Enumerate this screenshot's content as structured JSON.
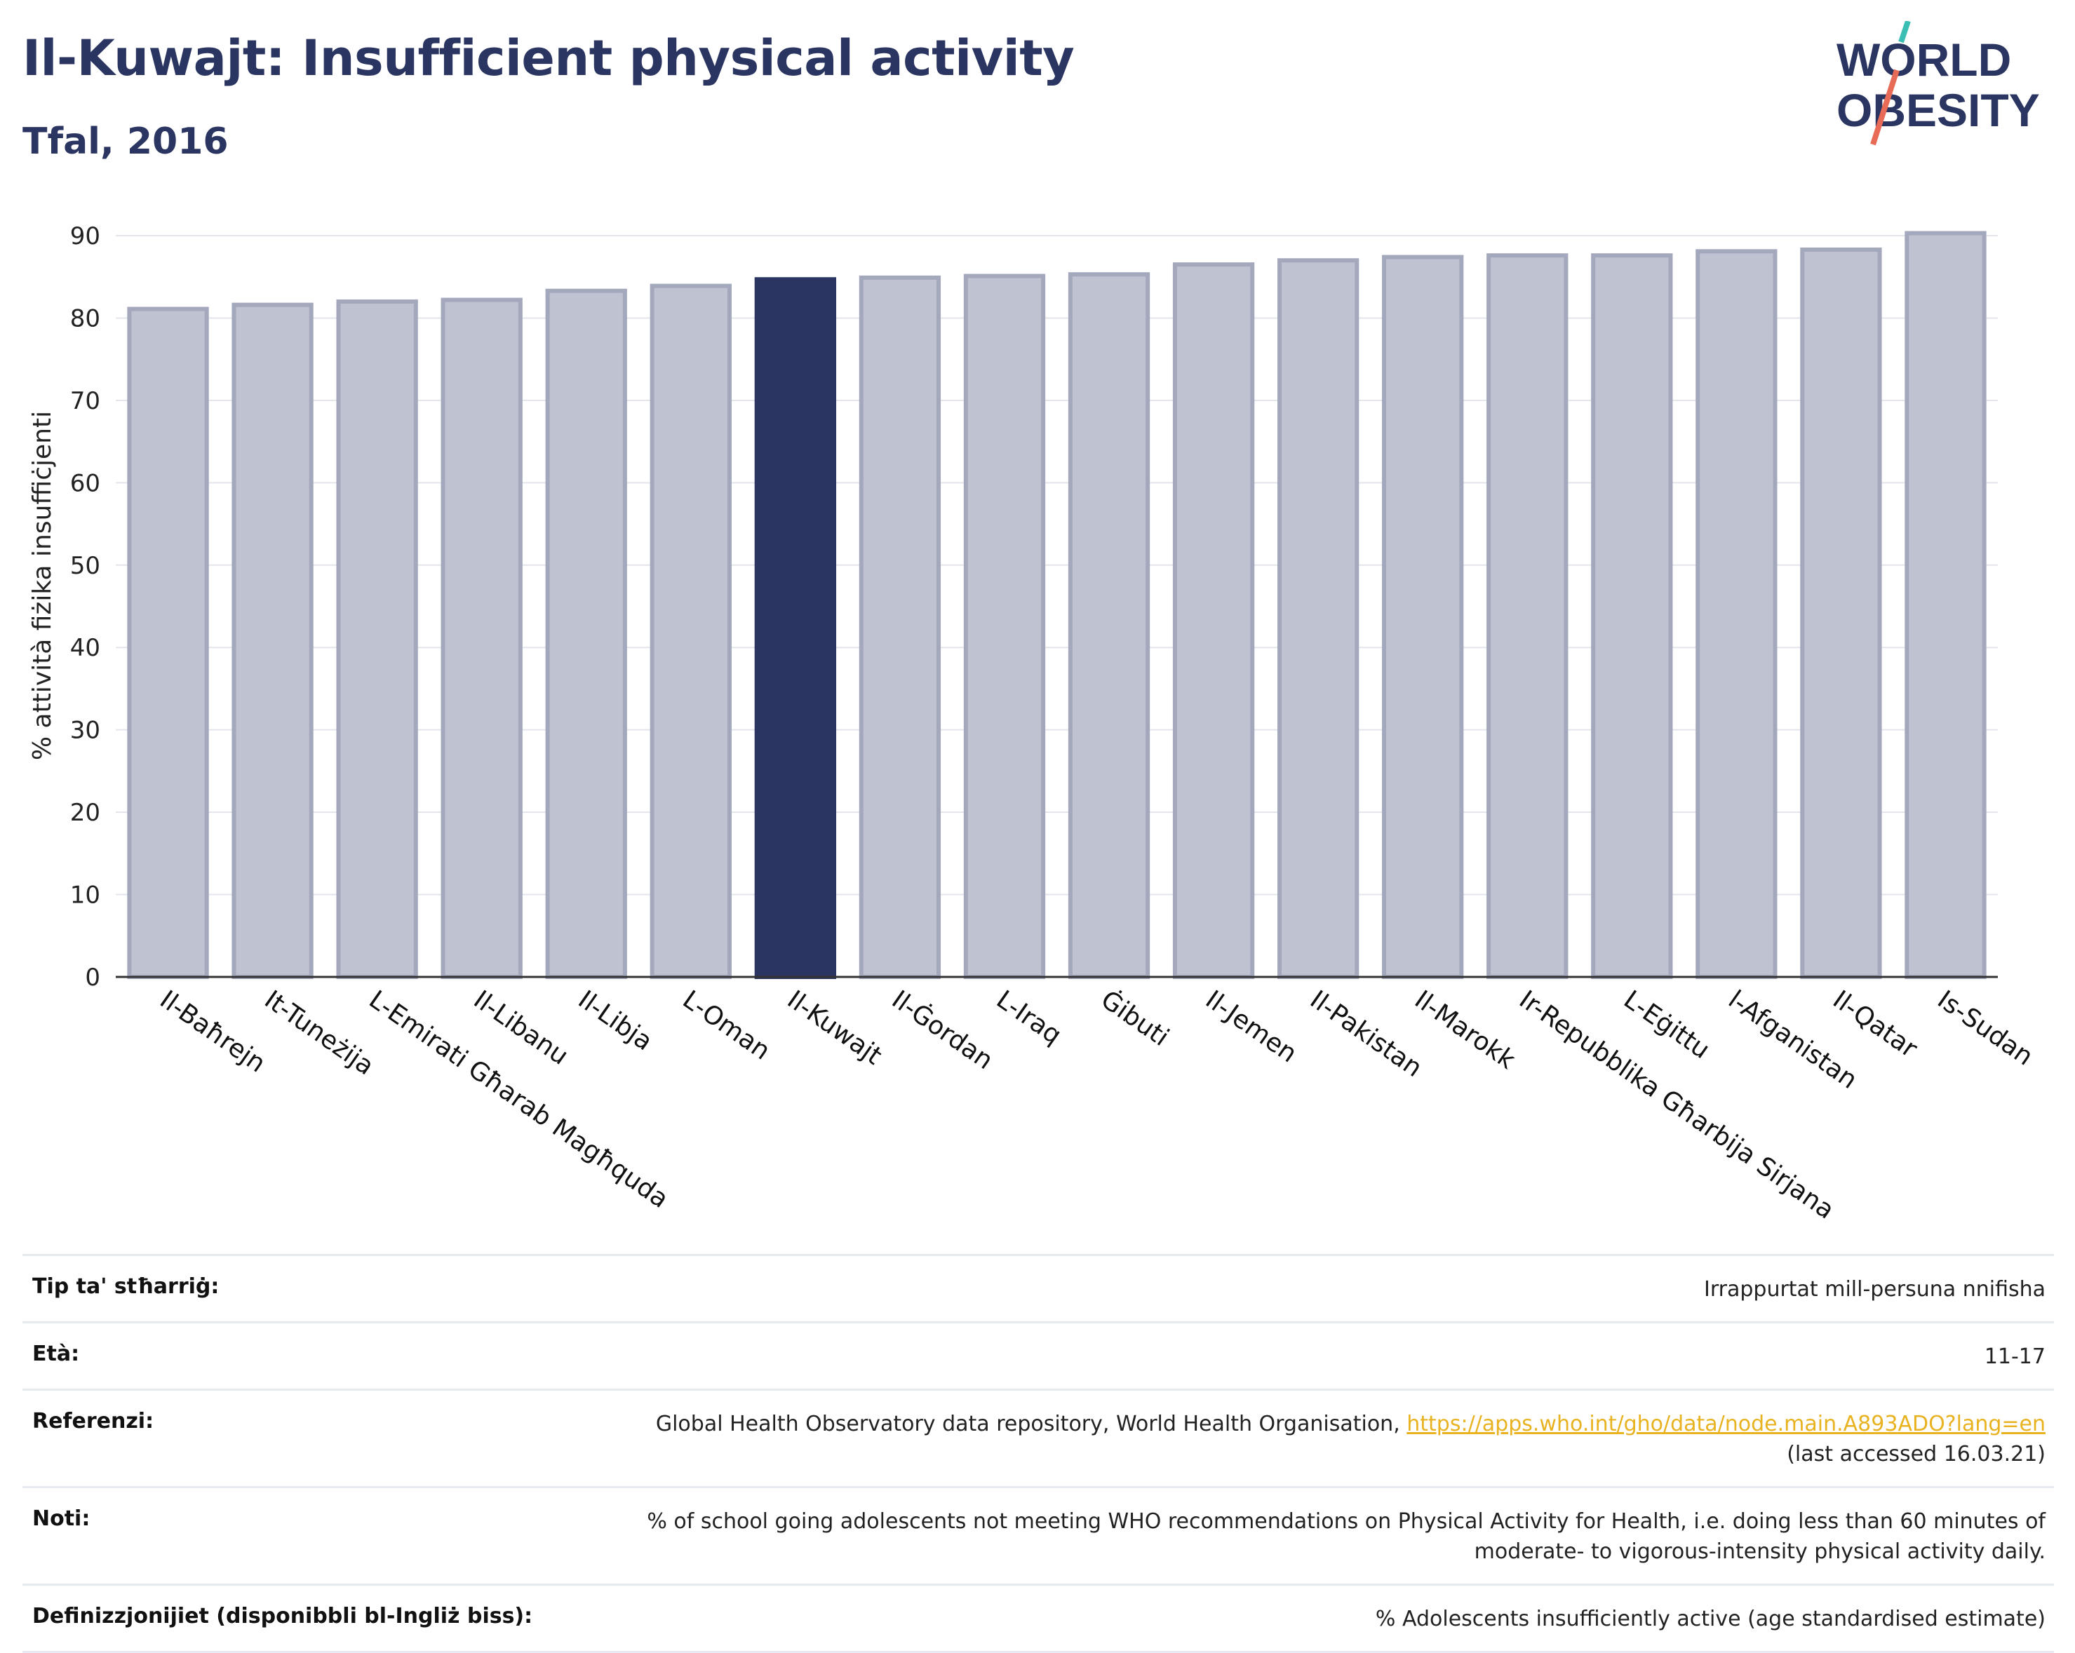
{
  "header": {
    "title": "Il-Kuwajt: Insufficient physical activity",
    "subtitle": "Tfal, 2016"
  },
  "logo": {
    "line1": "WORLD",
    "line2": "OBESITY"
  },
  "colors": {
    "highlight": "#2b3561",
    "bar_fill": "#bfc2d0",
    "bar_stroke": "#a3a8bd",
    "text_dark": "#2b3561",
    "link": "#e8b220"
  },
  "chart_data": {
    "type": "bar",
    "ylabel": "% attività fiżika insuffiċjenti",
    "ylim": [
      0,
      90
    ],
    "yticks": [
      0,
      10,
      20,
      30,
      40,
      50,
      60,
      70,
      80,
      90
    ],
    "grid": true,
    "highlight": "Il-Kuwajt",
    "categories": [
      "Il-Baħrejn",
      "It-Tuneżija",
      "L-Emirati Għarab Magħquda",
      "Il-Libanu",
      "Il-Libja",
      "L-Oman",
      "Il-Kuwajt",
      "Il-Ġordan",
      "L-Iraq",
      "Ġibuti",
      "Il-Jemen",
      "Il-Pakistan",
      "Il-Marokk",
      "Ir-Repubblika Għarbija Sirjana",
      "L-Eġittu",
      "l-Afganistan",
      "Il-Qatar",
      "Is-Sudan"
    ],
    "values": [
      81.1,
      81.6,
      82.0,
      82.2,
      83.3,
      83.9,
      84.7,
      84.9,
      85.1,
      85.3,
      86.5,
      87.0,
      87.4,
      87.6,
      87.6,
      88.1,
      88.3,
      90.3
    ]
  },
  "info_table": [
    {
      "label": "Tip ta' stħarriġ:",
      "value": "Irrappurtat mill-persuna nnifisha"
    },
    {
      "label": "Età:",
      "value": "11-17"
    },
    {
      "label": "Referenzi:",
      "value": "Global Health Observatory data repository, World Health Organisation, ",
      "link": "https://apps.who.int/gho/data/node.main.A893ADO?lang=en",
      "value2": "(last accessed 16.03.21)"
    },
    {
      "label": "Noti:",
      "value": "% of school going adolescents not meeting WHO recommendations on Physical Activity for Health, i.e. doing less than 60 minutes of",
      "value2": "moderate- to vigorous-intensity physical activity daily."
    },
    {
      "label": "Definizzjonijiet (disponibbli bl-Ingliż biss):",
      "value": "% Adolescents insufficiently active (age standardised estimate)"
    }
  ]
}
